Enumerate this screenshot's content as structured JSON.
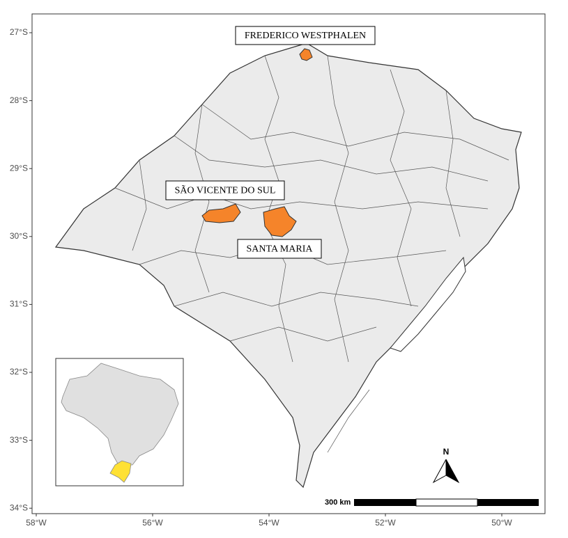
{
  "map": {
    "y_ticks": [
      "27°S",
      "28°S",
      "29°S",
      "30°S",
      "31°S",
      "32°S",
      "33°S",
      "34°S"
    ],
    "x_ticks": [
      "58°W",
      "56°W",
      "54°W",
      "52°W",
      "50°W"
    ],
    "places": [
      "FREDERICO WESTPHALEN",
      "SÃO VICENTE DO SUL",
      "SANTA MARIA"
    ],
    "north_label": "N",
    "scale_label": "300 km"
  }
}
